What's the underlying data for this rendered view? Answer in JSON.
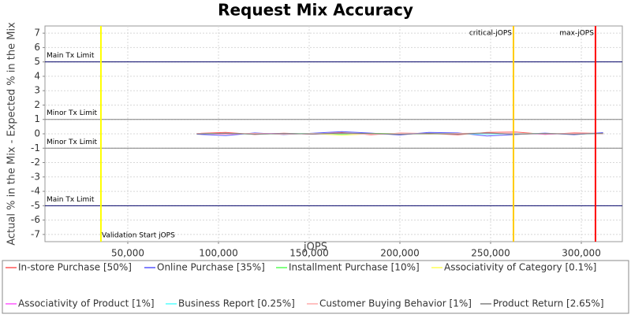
{
  "chart_data": {
    "type": "line",
    "title": "Request Mix Accuracy",
    "x_label": "jOPS",
    "y_label": "Actual % in the Mix - Expected % in the Mix",
    "xlim": [
      4350,
      322600
    ],
    "ylim": [
      -7.5,
      7.5
    ],
    "xticks": [
      {
        "value": 50000,
        "label": "50,000"
      },
      {
        "value": 100000,
        "label": "100,000"
      },
      {
        "value": 150000,
        "label": "150,000"
      },
      {
        "value": 200000,
        "label": "200,000"
      },
      {
        "value": 250000,
        "label": "250,000"
      },
      {
        "value": 300000,
        "label": "300,000"
      }
    ],
    "yticks": [
      -7,
      -6,
      -5,
      -4,
      -3,
      -2,
      -1,
      0,
      1,
      2,
      3,
      4,
      5,
      6,
      7
    ],
    "grid": true,
    "limits": [
      {
        "label": "Main Tx Limit",
        "value": 5,
        "color": "#000066"
      },
      {
        "label": "Minor Tx Limit",
        "value": 1,
        "color": "#808080"
      },
      {
        "label": "Minor Tx Limit",
        "value": -1,
        "color": "#808080"
      },
      {
        "label": "Main Tx Limit",
        "value": -5,
        "color": "#000066"
      }
    ],
    "markers": [
      {
        "label": "Validation Start jOPS",
        "value": 35200,
        "color": "#ffff00",
        "label_position": "bottom"
      },
      {
        "label": "critical-jOPS",
        "value": 262600,
        "color": "#ffcc00",
        "label_position": "top"
      },
      {
        "label": "max-jOPS",
        "value": 307800,
        "color": "#ff0000",
        "label_position": "top"
      }
    ],
    "x": [
      88000,
      104000,
      120000,
      136000,
      152000,
      168000,
      184000,
      200000,
      216000,
      232000,
      248000,
      264000,
      280000,
      296000,
      312000
    ],
    "series": [
      {
        "name": "In-store Purchase [50%]",
        "color": "#ff5555",
        "values": [
          0.02,
          0.1,
          -0.05,
          0.04,
          -0.03,
          0.08,
          -0.06,
          0.05,
          0.02,
          -0.07,
          0.1,
          0.12,
          -0.04,
          0.06,
          0.03
        ]
      },
      {
        "name": "Online Purchase [35%]",
        "color": "#5555ff",
        "values": [
          -0.03,
          -0.12,
          0.06,
          -0.05,
          0.04,
          0.15,
          0.05,
          -0.08,
          0.1,
          0.06,
          -0.15,
          -0.05,
          0.05,
          -0.06,
          0.08
        ]
      },
      {
        "name": "Installment Purchase [10%]",
        "color": "#55ff55",
        "values": [
          0.01,
          0.03,
          -0.02,
          0.02,
          0.01,
          -0.04,
          0.03,
          0.02,
          -0.03,
          0.02,
          0.04,
          -0.02,
          0.03,
          -0.01,
          0.02
        ]
      },
      {
        "name": "Associativity of Category [0.1%]",
        "color": "#ffff55",
        "values": [
          0,
          0.01,
          0,
          -0.01,
          0.01,
          -0.1,
          0,
          0.01,
          0,
          -0.01,
          0,
          0.01,
          0,
          0,
          0.01
        ]
      },
      {
        "name": "Associativity of Product [1%]",
        "color": "#ff55ff",
        "values": [
          0.01,
          -0.02,
          0.01,
          0.02,
          -0.01,
          0.03,
          -0.02,
          0.01,
          0.02,
          -0.01,
          0.02,
          0.01,
          -0.02,
          0.01,
          0
        ]
      },
      {
        "name": "Business Report [0.25%]",
        "color": "#55ffff",
        "values": [
          0,
          0.01,
          -0.01,
          0,
          0.01,
          0,
          -0.01,
          0.01,
          0,
          0.01,
          -0.01,
          0,
          0.01,
          0,
          -0.01
        ]
      },
      {
        "name": "Customer Buying Behavior [1%]",
        "color": "#ffaaaa",
        "values": [
          0.02,
          -0.01,
          0.03,
          -0.02,
          0.01,
          0.02,
          -0.03,
          0.02,
          -0.01,
          0.03,
          0.05,
          -0.02,
          0.01,
          0.02,
          -0.01
        ]
      },
      {
        "name": "Product Return [2.65%]",
        "color": "#808080",
        "values": [
          -0.01,
          0.04,
          -0.03,
          0.02,
          -0.02,
          0.05,
          0.02,
          -0.04,
          0.03,
          -0.02,
          0.06,
          -0.03,
          0.02,
          -0.03,
          0.04
        ]
      }
    ]
  }
}
